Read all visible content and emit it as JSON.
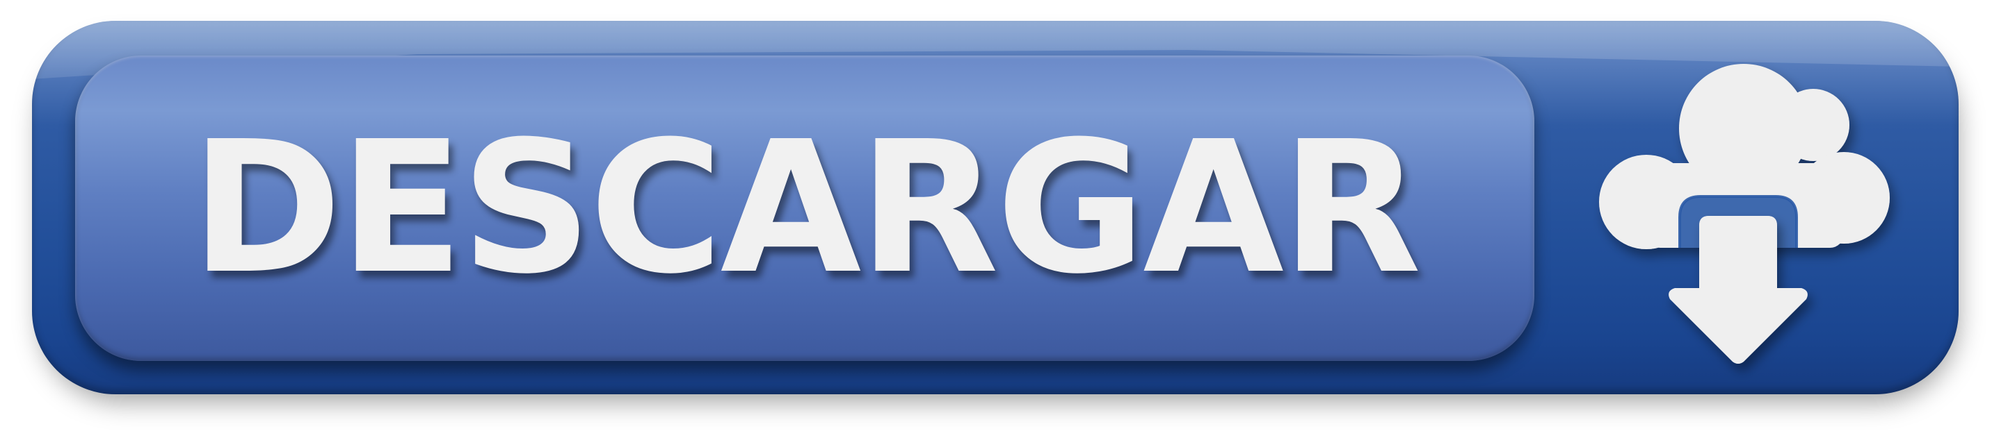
{
  "button": {
    "label": "DESCARGAR",
    "icon": "cloud-download-icon",
    "colors": {
      "outer_top": "#6f92c8",
      "outer_bottom": "#163b80",
      "inner_top": "#7b9ad3",
      "inner_bottom": "#3d599e",
      "text": "#f1f1f1",
      "icon": "#efefef"
    }
  }
}
